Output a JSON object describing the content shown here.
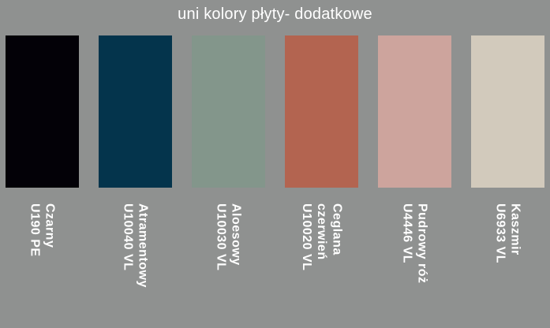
{
  "page": {
    "title": "uni kolory płyty- dodatkowe",
    "background_color": "#8f9190",
    "text_color": "#ffffff"
  },
  "swatches": [
    {
      "name": "Czarny",
      "code": "U190 PE",
      "color": "#030107",
      "label_lines": [
        "Czarny",
        "U190 PE"
      ]
    },
    {
      "name": "Atramentowy",
      "code": "U10040 VL",
      "color": "#04344c",
      "label_lines": [
        "Atramentowy",
        "U10040 VL"
      ]
    },
    {
      "name": "Aloesowy",
      "code": "U10030 VL",
      "color": "#83968b",
      "label_lines": [
        "Aloesowy",
        "U10030 VL"
      ]
    },
    {
      "name": "Ceglana czerwień",
      "code": "U10020 VL",
      "color": "#b36450",
      "label_lines": [
        "Ceglana",
        "czerwień",
        "U10020 VL"
      ]
    },
    {
      "name": "Pudrowy róż",
      "code": "U4446 VL",
      "color": "#cda49d",
      "label_lines": [
        "Pudrowy róż",
        "U4446 VL"
      ]
    },
    {
      "name": "Kaszmir",
      "code": "U6933 VL",
      "color": "#d2cabc",
      "label_lines": [
        "Kaszmir",
        "U6933 VL"
      ]
    }
  ]
}
